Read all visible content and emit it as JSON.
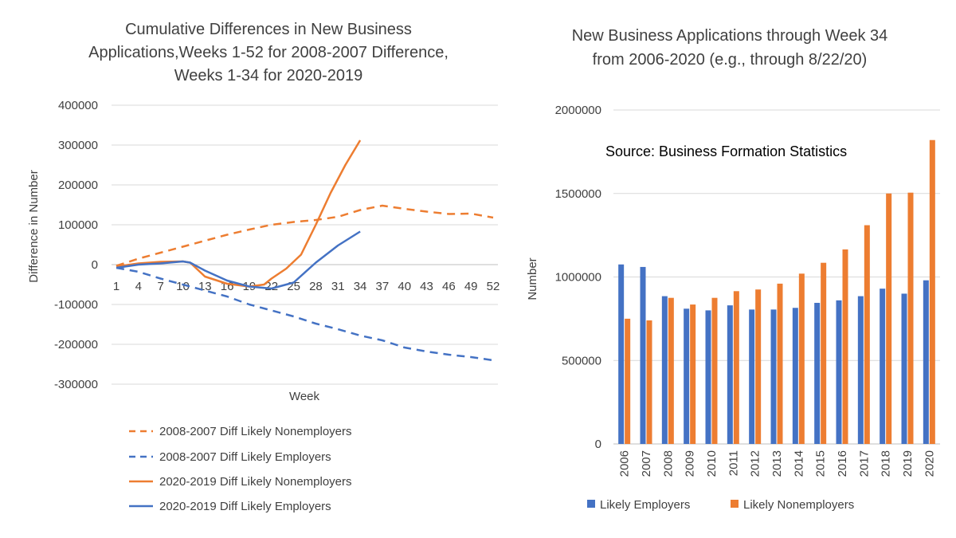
{
  "chart_data": [
    {
      "type": "line",
      "title_lines": [
        "Cumulative Differences in New Business",
        "Applications,Weeks 1-52 for 2008-2007 Difference,",
        "Weeks 1-34 for 2020-2019"
      ],
      "xlabel": "Week",
      "ylabel": "Difference in Number",
      "ylim": [
        -300000,
        400000
      ],
      "y_ticks": [
        400000,
        300000,
        200000,
        100000,
        0,
        -100000,
        -200000,
        -300000
      ],
      "y_tick_labels": [
        "400000",
        "300000",
        "200000",
        "100000",
        "0",
        "-100000",
        "-200000",
        "-300000"
      ],
      "x_ticks": [
        1,
        4,
        7,
        10,
        13,
        16,
        19,
        22,
        25,
        28,
        31,
        34,
        37,
        40,
        43,
        46,
        49,
        52
      ],
      "x_tick_labels": [
        "1",
        "4",
        "7",
        "10",
        "13",
        "16",
        "19",
        "22",
        "25",
        "28",
        "31",
        "34",
        "37",
        "40",
        "43",
        "46",
        "49",
        "52"
      ],
      "grid": true,
      "legend_position": "bottom",
      "series": [
        {
          "name": "2008-2007 Diff Likely Nonemployers",
          "color": "#ED7D31",
          "style": "dashed",
          "x": [
            1,
            4,
            7,
            10,
            13,
            16,
            19,
            22,
            25,
            28,
            31,
            34,
            37,
            40,
            43,
            46,
            49,
            52
          ],
          "y": [
            -3000,
            15000,
            30000,
            45000,
            60000,
            75000,
            88000,
            100000,
            107000,
            112000,
            120000,
            137000,
            148000,
            140000,
            133000,
            127000,
            128000,
            118000
          ]
        },
        {
          "name": "2008-2007 Diff Likely Employers",
          "color": "#4472C4",
          "style": "dashed",
          "x": [
            1,
            4,
            7,
            10,
            13,
            16,
            19,
            22,
            25,
            28,
            31,
            34,
            37,
            40,
            43,
            46,
            49,
            52
          ],
          "y": [
            -8000,
            -18000,
            -35000,
            -50000,
            -65000,
            -80000,
            -100000,
            -115000,
            -130000,
            -148000,
            -162000,
            -178000,
            -190000,
            -208000,
            -218000,
            -226000,
            -232000,
            -240000
          ]
        },
        {
          "name": "2020-2019 Diff Likely Nonemployers",
          "color": "#ED7D31",
          "style": "solid",
          "x": [
            1,
            4,
            7,
            10,
            11,
            13,
            16,
            19,
            21,
            22,
            24,
            26,
            28,
            30,
            32,
            34
          ],
          "y": [
            -5000,
            3000,
            7000,
            8000,
            5000,
            -30000,
            -48000,
            -55000,
            -50000,
            -35000,
            -10000,
            25000,
            100000,
            180000,
            250000,
            312000
          ]
        },
        {
          "name": "2020-2019 Diff Likely Employers",
          "color": "#4472C4",
          "style": "solid",
          "x": [
            1,
            4,
            7,
            10,
            11,
            13,
            16,
            19,
            22,
            25,
            28,
            31,
            34
          ],
          "y": [
            -8000,
            0,
            3000,
            8000,
            5000,
            -15000,
            -40000,
            -55000,
            -60000,
            -45000,
            5000,
            48000,
            83000
          ]
        }
      ]
    },
    {
      "type": "bar",
      "title_lines": [
        "New Business Applications through Week 34",
        "from 2006-2020 (e.g., through 8/22/20)"
      ],
      "annotation": "Source:  Business Formation Statistics",
      "ylabel": "Number",
      "xlabel": "",
      "ylim": [
        0,
        2000000
      ],
      "y_ticks": [
        0,
        500000,
        1000000,
        1500000,
        2000000
      ],
      "y_tick_labels": [
        "0",
        "500000",
        "1000000",
        "1500000",
        "2000000"
      ],
      "grid": true,
      "legend_position": "bottom",
      "categories": [
        "2006",
        "2007",
        "2008",
        "2009",
        "2010",
        "2011",
        "2012",
        "2013",
        "2014",
        "2015",
        "2016",
        "2017",
        "2018",
        "2019",
        "2020"
      ],
      "series": [
        {
          "name": "Likely Employers",
          "color": "#4472C4",
          "values": [
            1075000,
            1060000,
            885000,
            810000,
            800000,
            830000,
            805000,
            805000,
            815000,
            845000,
            860000,
            885000,
            930000,
            900000,
            980000
          ]
        },
        {
          "name": "Likely Nonemployers",
          "color": "#ED7D31",
          "values": [
            750000,
            740000,
            875000,
            835000,
            875000,
            915000,
            925000,
            960000,
            1020000,
            1085000,
            1165000,
            1310000,
            1500000,
            1505000,
            1820000
          ]
        }
      ]
    }
  ]
}
